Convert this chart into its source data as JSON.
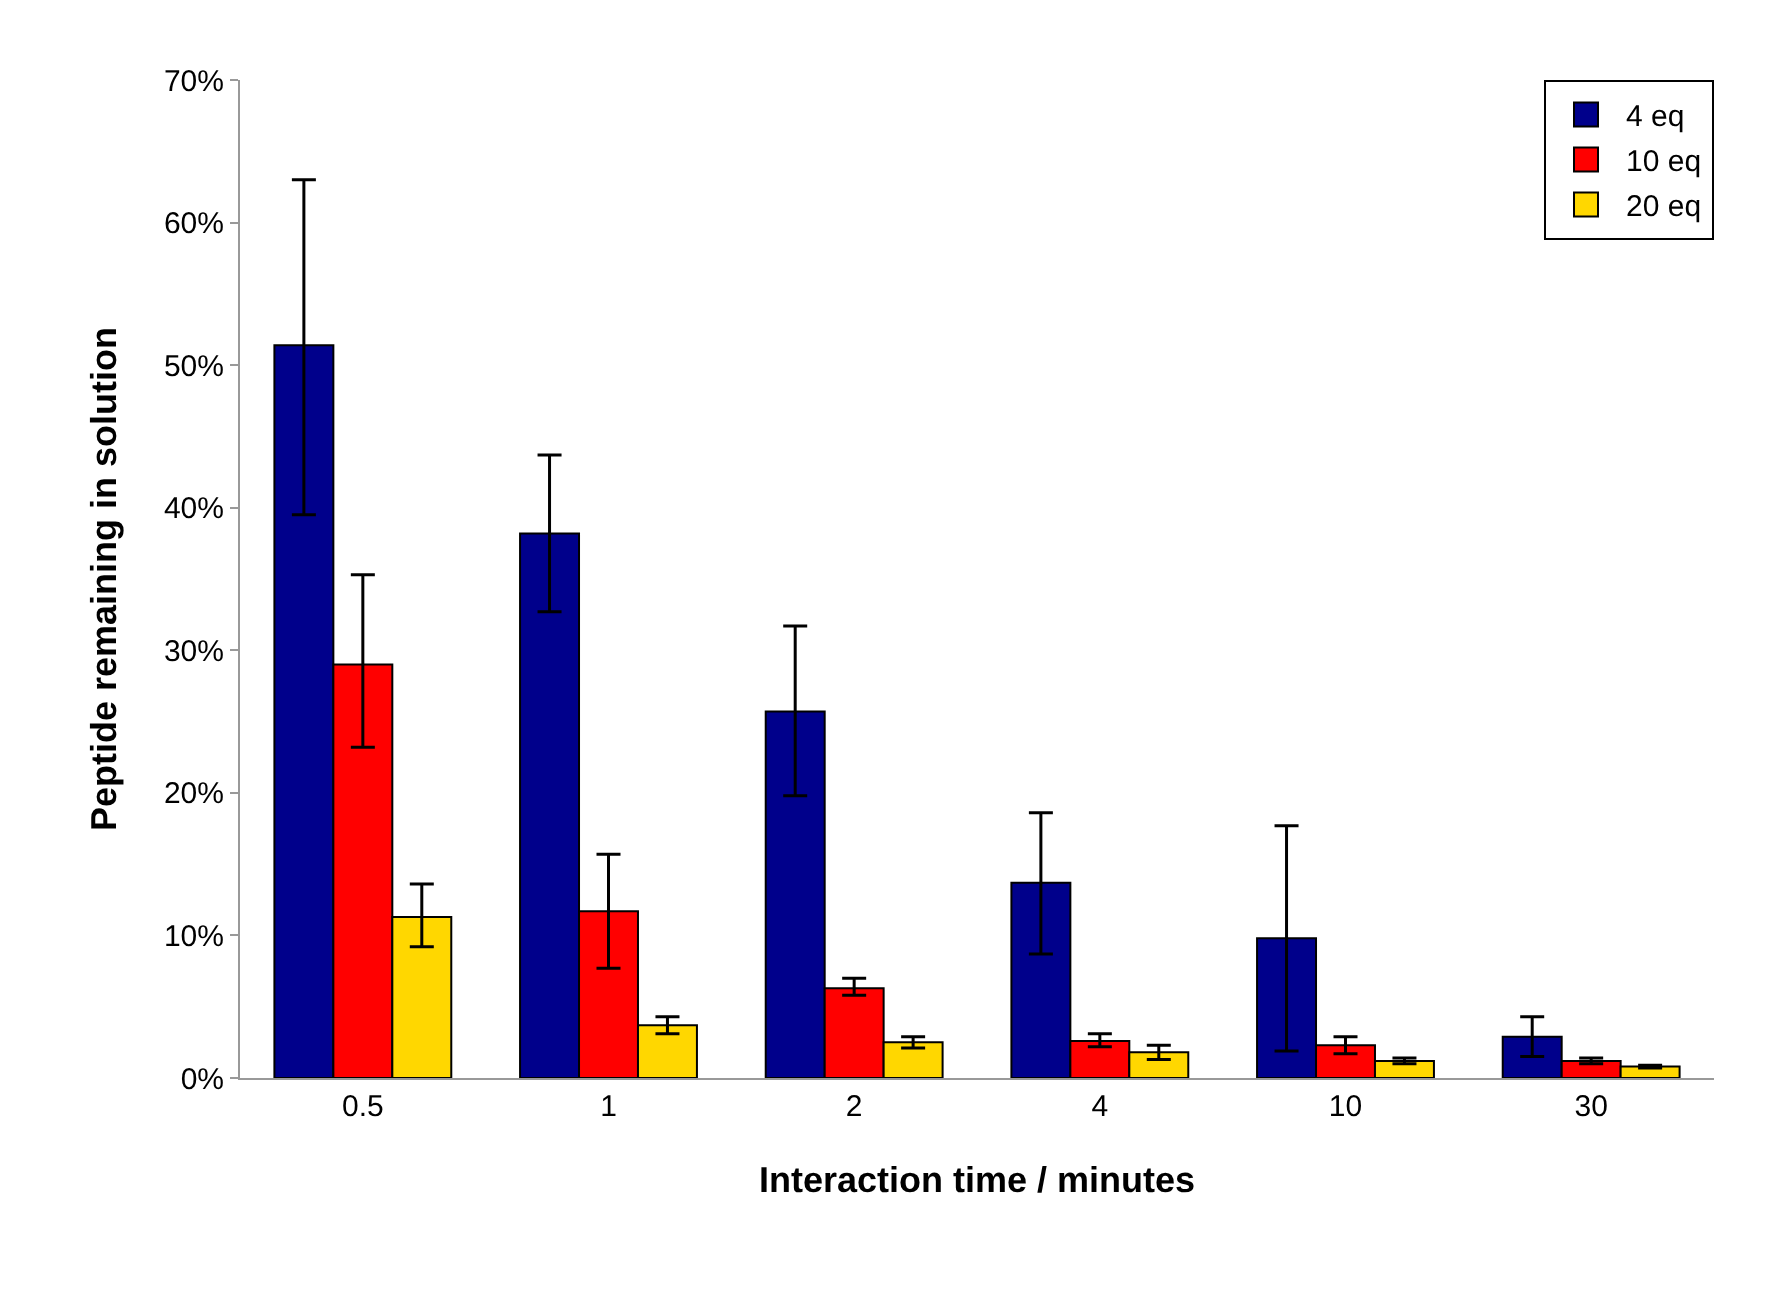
{
  "chart_data": {
    "type": "bar",
    "xlabel": "Interaction time / minutes",
    "ylabel": "Peptide remaining in solution",
    "categories": [
      "0.5",
      "1",
      "2",
      "4",
      "10",
      "30"
    ],
    "series": [
      {
        "name": "4 eq",
        "color": "#00008b",
        "values": [
          51.4,
          38.2,
          25.7,
          13.7,
          9.8,
          2.9
        ],
        "errors": [
          [
            39.5,
            63
          ],
          [
            32.7,
            43.7
          ],
          [
            19.8,
            31.7
          ],
          [
            8.7,
            18.6
          ],
          [
            1.9,
            17.7
          ],
          [
            1.5,
            4.3
          ]
        ]
      },
      {
        "name": "10 eq",
        "color": "#ff0000",
        "values": [
          29,
          11.7,
          6.3,
          2.6,
          2.3,
          1.2
        ],
        "errors": [
          [
            23.2,
            35.3
          ],
          [
            7.7,
            15.7
          ],
          [
            5.8,
            7
          ],
          [
            2.2,
            3.1
          ],
          [
            1.7,
            2.9
          ],
          [
            1,
            1.4
          ]
        ]
      },
      {
        "name": "20 eq",
        "color": "#ffd700",
        "values": [
          11.3,
          3.7,
          2.5,
          1.8,
          1.2,
          0.8
        ],
        "errors": [
          [
            9.2,
            13.6
          ],
          [
            3.1,
            4.3
          ],
          [
            2.1,
            2.9
          ],
          [
            1.3,
            2.3
          ],
          [
            1,
            1.4
          ],
          [
            0.7,
            0.9
          ]
        ]
      }
    ],
    "ylim": [
      0,
      70
    ],
    "yticks": [
      {
        "value": 0,
        "label": "0%"
      },
      {
        "value": 10,
        "label": "10%"
      },
      {
        "value": 20,
        "label": "20%"
      },
      {
        "value": 30,
        "label": "30%"
      },
      {
        "value": 40,
        "label": "40%"
      },
      {
        "value": 50,
        "label": "50%"
      },
      {
        "value": 60,
        "label": "60%"
      },
      {
        "value": 70,
        "label": "70%"
      }
    ],
    "grid": false,
    "legend": "top right"
  }
}
